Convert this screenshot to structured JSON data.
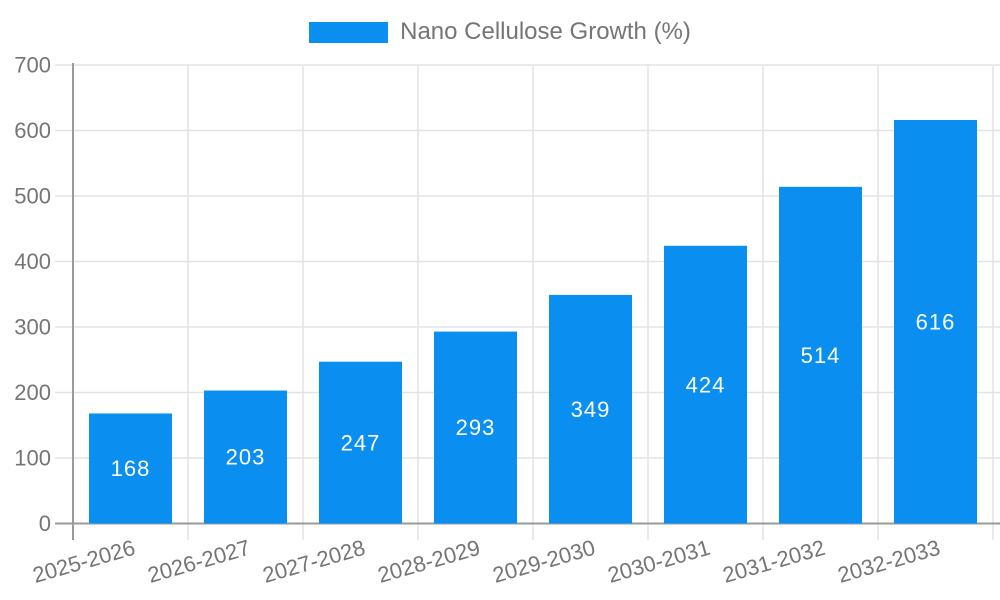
{
  "colors": {
    "bar": "#0A8FF0",
    "axis_label_text": "#757575",
    "legend_text": "#757575",
    "axis_line": "#9A9A9A",
    "grid_line": "#E3E3E3",
    "bar_value_text": "#FFFFFF",
    "background": "#FFFFFF"
  },
  "legend": {
    "label": "Nano Cellulose Growth (%)"
  },
  "chart_data": {
    "type": "bar",
    "title": "",
    "categories": [
      "2025-2026",
      "2026-2027",
      "2027-2028",
      "2028-2029",
      "2029-2030",
      "2030-2031",
      "2031-2032",
      "2032-2033"
    ],
    "series": [
      {
        "name": "Nano Cellulose Growth (%)",
        "values": [
          168,
          203,
          247,
          293,
          349,
          424,
          514,
          616
        ]
      }
    ],
    "bar_value_labels_shown": true,
    "xlabel": "",
    "ylabel": "",
    "ylim": [
      0,
      700
    ],
    "yticks": [
      0,
      100,
      200,
      300,
      400,
      500,
      600,
      700
    ],
    "grid": true,
    "legend_position": "top-center",
    "x_label_rotation_deg": -16
  }
}
